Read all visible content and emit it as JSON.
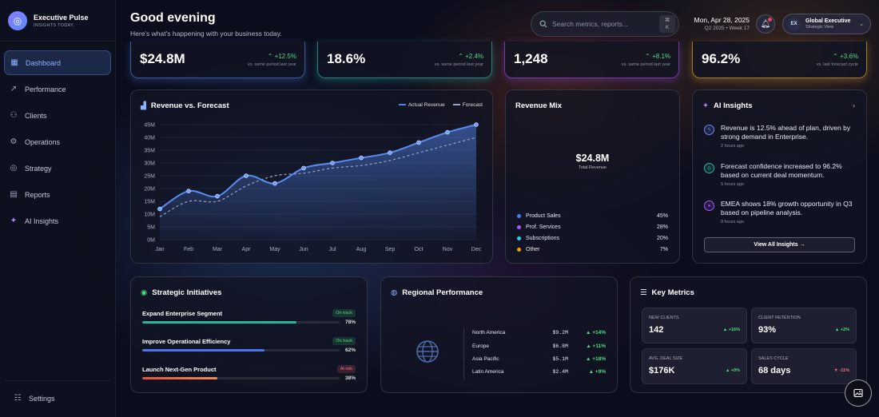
{
  "brand": {
    "title": "Executive Pulse",
    "subtitle": "INSIGHTS TODAY."
  },
  "nav": [
    {
      "label": "Dashboard",
      "icon": "grid-icon",
      "active": true
    },
    {
      "label": "Performance",
      "icon": "trend-icon"
    },
    {
      "label": "Clients",
      "icon": "users-icon"
    },
    {
      "label": "Operations",
      "icon": "gear-icon"
    },
    {
      "label": "Strategy",
      "icon": "target-icon"
    },
    {
      "label": "Reports",
      "icon": "file-icon"
    },
    {
      "label": "AI Insights",
      "icon": "sparkle-icon"
    }
  ],
  "settings_label": "Settings",
  "header": {
    "greeting": "Good evening",
    "subtitle": "Here's what's happening with your business today."
  },
  "search": {
    "placeholder": "Search metrics, reports...",
    "kbd_symbol": "⌘",
    "kbd_key": "K"
  },
  "date": {
    "main": "Mon, Apr 28, 2025",
    "sub": "Q2 2025 • Week 17"
  },
  "user": {
    "initials": "EX",
    "name": "Global Executive",
    "role": "Strategic View"
  },
  "kpis": [
    {
      "value": "$24.8M",
      "change": "+12.5%",
      "note": "vs. same period last year",
      "accent": "#4a78d8"
    },
    {
      "value": "18.6%",
      "change": "+2.4%",
      "note": "vs. same period last year",
      "accent": "#2bb5a8"
    },
    {
      "value": "1,248",
      "change": "+8.1%",
      "note": "vs. same period last year",
      "accent": "#9a4ad8"
    },
    {
      "value": "96.2%",
      "change": "+3.6%",
      "note": "vs. last forecast cycle",
      "accent": "#d89a2a"
    }
  ],
  "revenue_chart": {
    "title": "Revenue vs. Forecast",
    "legend_actual": "Actual Revenue",
    "legend_forecast": "Forecast",
    "y_ticks": [
      "45M",
      "40M",
      "35M",
      "30M",
      "25M",
      "20M",
      "15M",
      "10M",
      "5M",
      "0M"
    ],
    "chart_data": {
      "type": "line",
      "categories": [
        "Jan",
        "Feb",
        "Mar",
        "Apr",
        "May",
        "Jun",
        "Jul",
        "Aug",
        "Sep",
        "Oct",
        "Nov",
        "Dec"
      ],
      "series": [
        {
          "name": "Actual Revenue",
          "values": [
            12,
            19,
            17,
            25,
            22,
            28,
            30,
            32,
            34,
            38,
            42,
            45
          ]
        },
        {
          "name": "Forecast",
          "values": [
            9,
            15,
            15,
            21,
            25,
            26,
            28,
            29,
            31,
            34,
            37,
            40
          ]
        }
      ],
      "ylim": [
        0,
        45
      ],
      "color_actual": "#4f7fe0",
      "color_forecast": "#9aa3c0"
    }
  },
  "mix": {
    "title": "Revenue Mix",
    "total": "$24.8M",
    "total_label": "Total Revenue",
    "items": [
      {
        "name": "Product Sales",
        "pct": "45%",
        "color": "#3b82f6"
      },
      {
        "name": "Prof. Services",
        "pct": "28%",
        "color": "#a855f7"
      },
      {
        "name": "Subscriptions",
        "pct": "20%",
        "color": "#22d3ee"
      },
      {
        "name": "Other",
        "pct": "7%",
        "color": "#f59e0b"
      }
    ]
  },
  "ai": {
    "title": "AI Insights",
    "items": [
      {
        "text": "Revenue is 12.5% ahead of plan, driven by strong demand in Enterprise.",
        "time": "2 hours ago",
        "color": "#6d8cff"
      },
      {
        "text": "Forecast confidence increased to 96.2% based on current deal momentum.",
        "time": "5 hours ago",
        "color": "#2bb5a8"
      },
      {
        "text": "EMEA shows 18% growth opportunity in Q3 based on pipeline analysis.",
        "time": "8 hours ago",
        "color": "#a855f7"
      }
    ],
    "button": "View All Insights →"
  },
  "initiatives": {
    "title": "Strategic Initiatives",
    "items": [
      {
        "name": "Expand Enterprise Segment",
        "status": "On track",
        "pct": "78%",
        "progress": 0.78,
        "color": "#2bb59a",
        "status_color": "#4ade80"
      },
      {
        "name": "Improve Operational Efficiency",
        "status": "On track",
        "pct": "62%",
        "progress": 0.62,
        "color": "#4a78e8",
        "status_color": "#4ade80"
      },
      {
        "name": "Launch Next-Gen Product",
        "status": "At risk",
        "pct": "38%",
        "progress": 0.38,
        "color": "#e0563a",
        "status_color": "#f87171"
      }
    ]
  },
  "regional": {
    "title": "Regional Performance",
    "rows": [
      {
        "region": "North America",
        "value": "$9.2M",
        "change": "▲ +14%"
      },
      {
        "region": "Europe",
        "value": "$6.8M",
        "change": "▲ +11%"
      },
      {
        "region": "Asia Pacific",
        "value": "$5.1M",
        "change": "▲ +18%"
      },
      {
        "region": "Latin America",
        "value": "$2.4M",
        "change": "▲ +9%"
      }
    ]
  },
  "key_metrics": {
    "title": "Key Metrics",
    "items": [
      {
        "label": "NEW CLIENTS",
        "value": "142",
        "change": "▲ +16%",
        "color": "#4ade80"
      },
      {
        "label": "CLIENT RETENTION",
        "value": "93%",
        "change": "▲ +2%",
        "color": "#4ade80"
      },
      {
        "label": "AVG. DEAL SIZE",
        "value": "$176K",
        "change": "▲ +9%",
        "color": "#4ade80"
      },
      {
        "label": "SALES CYCLE",
        "value": "68 days",
        "change": "▼ -11%",
        "color": "#f87171"
      }
    ]
  }
}
